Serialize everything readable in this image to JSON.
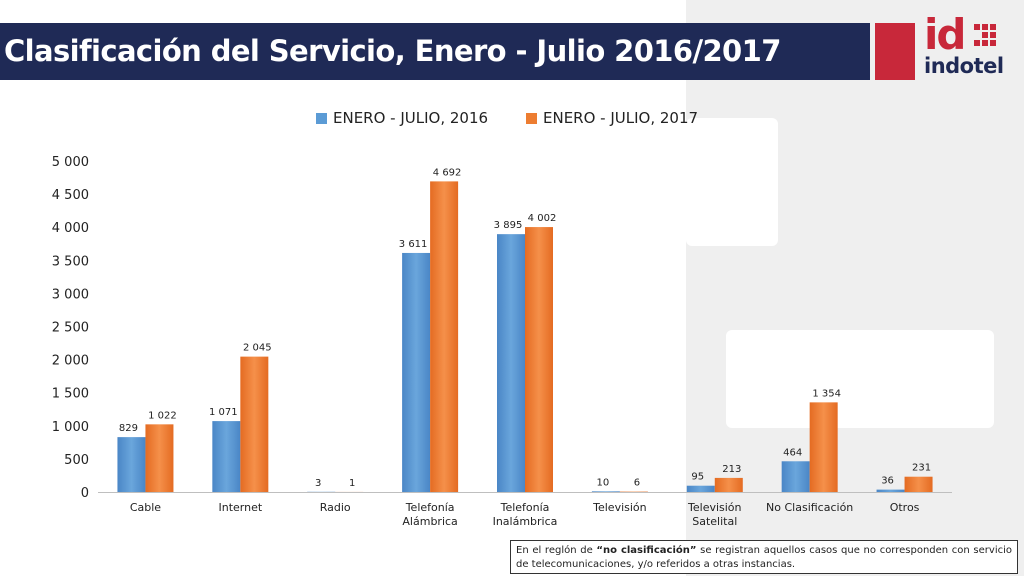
{
  "header": {
    "title": "Clasificación del Servicio, Enero - Julio 2016/2017",
    "logo_short": "id",
    "logo_word": "indotel"
  },
  "colors": {
    "title_bar": "#1f2a56",
    "accent_red": "#c8283a",
    "series_2016": "#5b9bd5",
    "series_2017": "#ed7d31"
  },
  "chart_data": {
    "type": "bar",
    "categories": [
      "Cable",
      "Internet",
      "Radio",
      "Telefonía Alámbrica",
      "Telefonía Inalámbrica",
      "Televisión",
      "Televisión Satelital",
      "No Clasificación",
      "Otros"
    ],
    "category_lines": [
      [
        "Cable"
      ],
      [
        "Internet"
      ],
      [
        "Radio"
      ],
      [
        "Telefonía",
        "Alámbrica"
      ],
      [
        "Telefonía",
        "Inalámbrica"
      ],
      [
        "Televisión"
      ],
      [
        "Televisión",
        "Satelital"
      ],
      [
        "No Clasificación"
      ],
      [
        "Otros"
      ]
    ],
    "series": [
      {
        "name": "ENERO - JULIO, 2016",
        "values": [
          829,
          1071,
          3,
          3611,
          3895,
          10,
          95,
          464,
          36
        ],
        "labels": [
          "829",
          "1 071",
          "3",
          "3 611",
          "3 895",
          "10",
          "95",
          "464",
          "36"
        ]
      },
      {
        "name": "ENERO - JULIO, 2017",
        "values": [
          1022,
          2045,
          1,
          4692,
          4002,
          6,
          213,
          1354,
          231
        ],
        "labels": [
          "1 022",
          "2 045",
          "1",
          "4 692",
          "4 002",
          "6",
          "213",
          "1 354",
          "231"
        ]
      }
    ],
    "yticks": [
      0,
      500,
      1000,
      1500,
      2000,
      2500,
      3000,
      3500,
      4000,
      4500,
      5000
    ],
    "ytick_labels": [
      "0",
      "500",
      "1 000",
      "1 500",
      "2 000",
      "2 500",
      "3 000",
      "3 500",
      "4 000",
      "4 500",
      "5 000"
    ],
    "ylim": [
      0,
      5000
    ],
    "legend_position": "top-center",
    "grid": false
  },
  "footnote": {
    "prefix": "En el reglón de ",
    "bold": "“no clasificación”",
    "suffix": " se registran aquellos casos que no corresponden con servicio de telecomunicaciones, y/o referidos a otras instancias."
  }
}
